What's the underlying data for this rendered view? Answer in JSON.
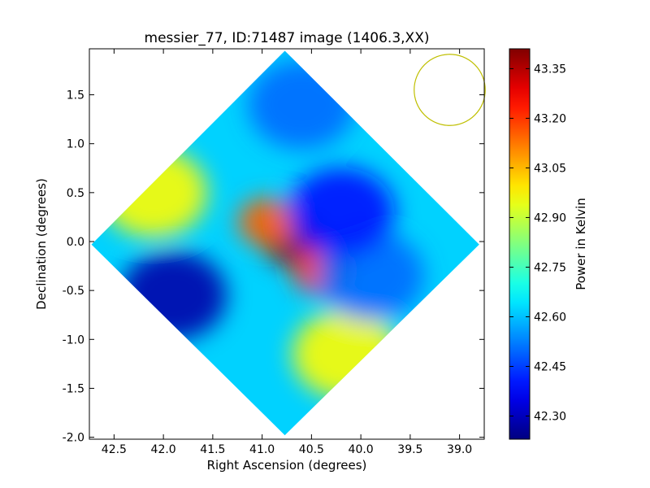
{
  "chart_data": {
    "type": "heatmap",
    "title": "messier_77, ID:71487 image (1406.3,XX)",
    "xlabel": "Right Ascension (degrees)",
    "ylabel": "Declination (degrees)",
    "xlim": [
      42.75,
      38.75
    ],
    "ylim": [
      -2.02,
      1.97
    ],
    "x_ticks": [
      "42.5",
      "42.0",
      "41.5",
      "41.0",
      "40.5",
      "40.0",
      "39.5",
      "39.0"
    ],
    "y_ticks": [
      "-2.0",
      "-1.5",
      "-1.0",
      "-0.5",
      "0.0",
      "0.5",
      "1.0",
      "1.5"
    ],
    "colorbar": {
      "label": "Power in Kelvin",
      "range": [
        42.23,
        43.41
      ],
      "ticks": [
        "42.30",
        "42.45",
        "42.60",
        "42.75",
        "42.90",
        "43.05",
        "43.20",
        "43.35"
      ],
      "colormap": "jet"
    },
    "beam_marker": {
      "shape": "circle",
      "ra": 39.1,
      "dec": 1.55,
      "color": "#bfbf00"
    },
    "features": [
      {
        "ra": 40.7,
        "dec": 0.0,
        "value": 43.4
      },
      {
        "ra": 40.4,
        "dec": -0.3,
        "value": 43.2
      },
      {
        "ra": 40.95,
        "dec": 0.2,
        "value": 43.15
      },
      {
        "ra": 42.1,
        "dec": 0.5,
        "value": 42.97
      },
      {
        "ra": 40.15,
        "dec": -1.15,
        "value": 42.97
      },
      {
        "ra": 41.9,
        "dec": -0.55,
        "value": 42.28
      },
      {
        "ra": 39.9,
        "dec": -0.35,
        "value": 42.5
      },
      {
        "ra": 40.6,
        "dec": 1.4,
        "value": 42.5
      },
      {
        "ra": 40.2,
        "dec": 0.3,
        "value": 42.4
      }
    ],
    "background_value": 42.62,
    "grid": false
  }
}
